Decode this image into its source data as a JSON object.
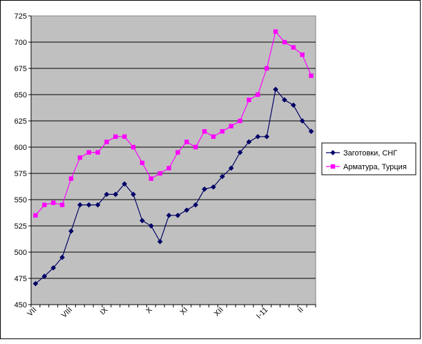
{
  "chart_data": {
    "type": "line",
    "title": "",
    "xlabel": "",
    "ylabel": "",
    "ylim": [
      450,
      725
    ],
    "yticks": [
      450,
      475,
      500,
      525,
      550,
      575,
      600,
      625,
      650,
      675,
      700,
      725
    ],
    "grid": "horizontal",
    "plot_background": "#c0c0c0",
    "legend_position": "right",
    "x_tick_labels": [
      {
        "label": "VII",
        "index": 0
      },
      {
        "label": "VIII",
        "index": 4
      },
      {
        "label": "IX",
        "index": 8
      },
      {
        "label": "X",
        "index": 13
      },
      {
        "label": "XI",
        "index": 17
      },
      {
        "label": "XII",
        "index": 21
      },
      {
        "label": "I-11",
        "index": 26
      },
      {
        "label": "II",
        "index": 30
      }
    ],
    "point_count": 32,
    "series": [
      {
        "name": "Заготовки, СНГ",
        "color": "#000066",
        "marker": "diamond",
        "values": [
          470,
          477,
          485,
          495,
          520,
          545,
          545,
          545,
          555,
          555,
          565,
          555,
          530,
          525,
          510,
          535,
          535,
          540,
          545,
          560,
          562,
          572,
          580,
          595,
          605,
          610,
          610,
          655,
          645,
          640,
          625,
          615
        ]
      },
      {
        "name": "Арматура, Турция",
        "color": "#ff00ff",
        "marker": "square",
        "values": [
          535,
          545,
          547,
          545,
          570,
          590,
          595,
          595,
          605,
          610,
          610,
          600,
          585,
          570,
          575,
          580,
          595,
          605,
          600,
          615,
          610,
          615,
          620,
          625,
          645,
          650,
          675,
          710,
          700,
          695,
          688,
          668
        ]
      }
    ]
  }
}
